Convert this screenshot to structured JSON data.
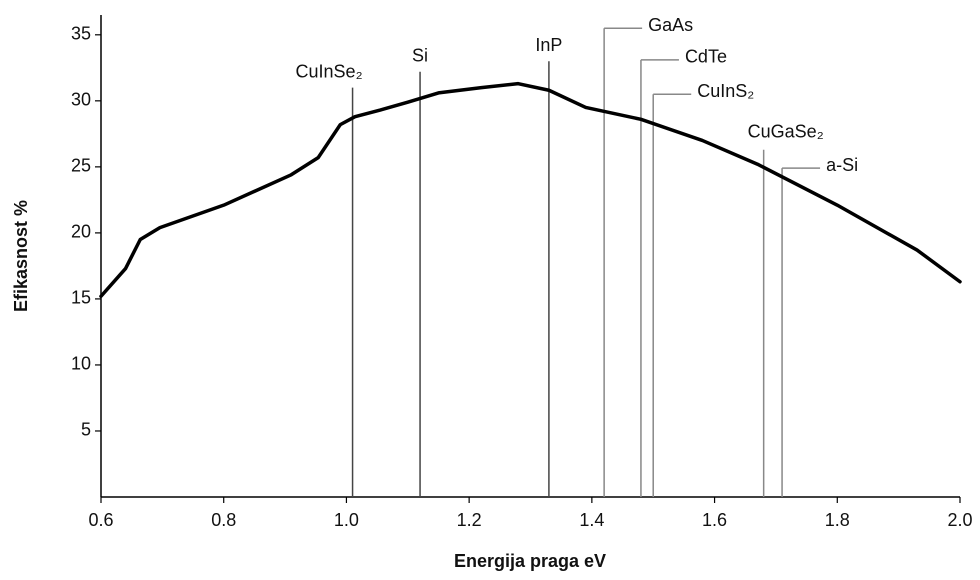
{
  "chart_data": {
    "type": "line",
    "x_label": "Energija praga  eV",
    "y_label": "Efikasnost  %",
    "x": [
      0.6,
      0.64,
      0.664,
      0.696,
      0.8,
      0.91,
      0.954,
      0.99,
      1.014,
      1.055,
      1.1,
      1.15,
      1.22,
      1.28,
      1.33,
      1.39,
      1.48,
      1.58,
      1.67,
      1.8,
      1.93,
      2.0
    ],
    "series": [
      {
        "color": "#000000",
        "values": [
          15.2,
          17.3,
          19.5,
          20.4,
          22.1,
          24.4,
          25.7,
          28.2,
          28.8,
          29.3,
          29.9,
          30.6,
          31.0,
          31.3,
          30.8,
          29.5,
          28.6,
          27.0,
          25.2,
          22.1,
          18.7,
          16.3
        ]
      }
    ],
    "annotations": [
      {
        "label": "CuInSe₂",
        "x": 1.01,
        "y": 31.0
      },
      {
        "label": "Si",
        "x": 1.12,
        "y": 32.2
      },
      {
        "label": "InP",
        "x": 1.33,
        "y": 33.0
      },
      {
        "label": "GaAs",
        "x": 1.42,
        "y": 35.5
      },
      {
        "label": "CdTe",
        "x": 1.48,
        "y": 33.1
      },
      {
        "label": "CuInS₂",
        "x": 1.5,
        "y": 30.5
      },
      {
        "label": "CuGaSe₂",
        "x": 1.68,
        "y": 26.3
      },
      {
        "label": "a-Si",
        "x": 1.71,
        "y": 24.9
      }
    ],
    "xlim": [
      0.6,
      2.0
    ],
    "xticks": [
      {
        "value": 0.6,
        "label": "0.6"
      },
      {
        "value": 0.8,
        "label": "0.8"
      },
      {
        "value": 1.0,
        "label": "1.0"
      },
      {
        "value": 1.2,
        "label": "1.2"
      },
      {
        "value": 1.4,
        "label": "1.4"
      },
      {
        "value": 1.6,
        "label": "1.6"
      },
      {
        "value": 1.8,
        "label": "1.8"
      },
      {
        "value": 2.0,
        "label": "2.0"
      }
    ],
    "ylim": [
      0,
      36.5
    ],
    "yticks": [
      5,
      10,
      15,
      20,
      25,
      30,
      35
    ]
  }
}
